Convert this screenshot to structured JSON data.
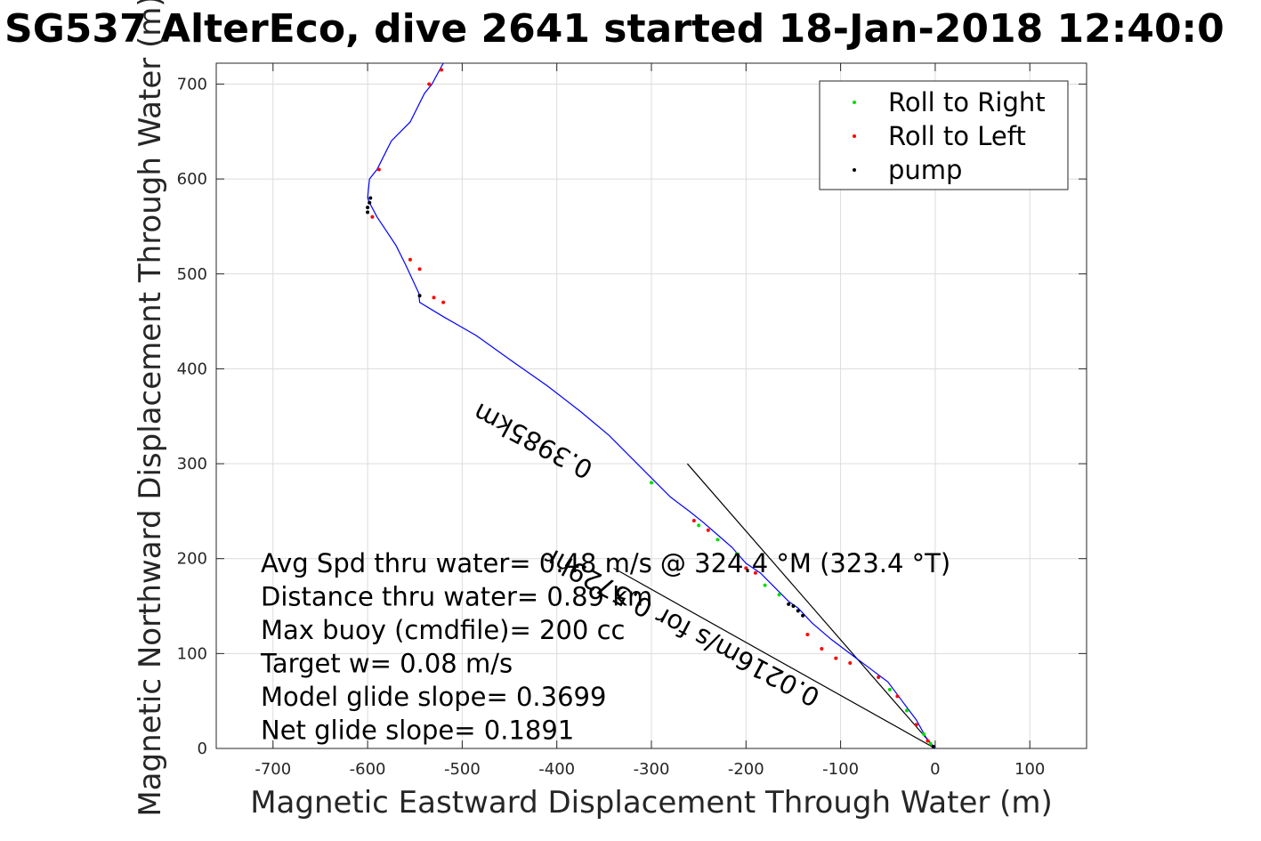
{
  "chart_data": {
    "type": "line",
    "title": "SG537 AlterEco, dive 2641 started 18-Jan-2018 12:40:0",
    "xlabel": "Magnetic Eastward Displacement Through Water (m)",
    "ylabel": "Magnetic Northward Displacement Through Water (m)",
    "xlim": [
      -760,
      160
    ],
    "ylim": [
      0,
      722
    ],
    "xticks": [
      -700,
      -600,
      -500,
      -400,
      -300,
      -200,
      -100,
      0,
      100
    ],
    "yticks": [
      0,
      100,
      200,
      300,
      400,
      500,
      600,
      700
    ],
    "grid": true,
    "legend_position": "top-right",
    "legend": [
      {
        "label": "Roll to Right",
        "color": "#00e000"
      },
      {
        "label": "Roll to Left",
        "color": "#ff0000"
      },
      {
        "label": "pump",
        "color": "#000000"
      }
    ],
    "track": {
      "name": "",
      "color": "#0000ff",
      "x": [
        0,
        -10,
        -20,
        -35,
        -50,
        -70,
        -90,
        -110,
        -130,
        -145,
        -155,
        -170,
        -185,
        -200,
        -215,
        -230,
        -245,
        -260,
        -280,
        -300,
        -320,
        -345,
        -375,
        -410,
        -450,
        -485,
        -520,
        -545,
        -546,
        -560,
        -570,
        -590,
        -598,
        -600,
        -598,
        -590,
        -585,
        -575,
        -555,
        -540,
        -532,
        -520
      ],
      "y": [
        0,
        12,
        30,
        50,
        70,
        85,
        100,
        115,
        132,
        148,
        155,
        170,
        185,
        195,
        212,
        225,
        238,
        250,
        265,
        285,
        305,
        330,
        355,
        382,
        410,
        435,
        455,
        470,
        480,
        510,
        530,
        560,
        575,
        580,
        600,
        610,
        620,
        640,
        660,
        690,
        700,
        722
      ]
    },
    "current_lines": [
      {
        "x": [
          0,
          -262
        ],
        "y": [
          0,
          300
        ]
      },
      {
        "x": [
          0,
          -340
        ],
        "y": [
          0,
          190
        ]
      }
    ],
    "current_labels": [
      {
        "text": "0.3985km",
        "x": -360,
        "y": 300,
        "angle_deg": 208
      },
      {
        "text": "0.0216m/s for 0.5729hr",
        "x": -120,
        "y": 60,
        "angle_deg": 208
      }
    ],
    "stats": [
      "Avg Spd thru water=  0.48 m/s @ 324.4 °M (323.4 °T)",
      "Distance thru water=  0.89 km",
      "Max buoy (cmdfile)= 200 cc",
      "Target w= 0.08 m/s",
      "Model glide slope= 0.3699",
      "Net glide slope= 0.1891"
    ],
    "roll_right_points": {
      "x": [
        -5,
        -12,
        -30,
        -48,
        -150,
        -165,
        -180,
        -210,
        -230,
        -250,
        -300
      ],
      "y": [
        5,
        15,
        40,
        62,
        150,
        162,
        172,
        205,
        220,
        235,
        280
      ]
    },
    "roll_left_points": {
      "x": [
        -8,
        -20,
        -40,
        -60,
        -90,
        -105,
        -120,
        -135,
        -190,
        -200,
        -240,
        -255,
        -520,
        -530,
        -545,
        -555,
        -588,
        -595,
        -522,
        -535
      ],
      "y": [
        8,
        25,
        55,
        75,
        90,
        95,
        105,
        120,
        185,
        190,
        230,
        240,
        470,
        475,
        505,
        515,
        610,
        560,
        715,
        700
      ]
    },
    "pump_points": {
      "x": [
        -2,
        -140,
        -145,
        -150,
        -155,
        -598,
        -600,
        -597,
        -545,
        -600
      ],
      "y": [
        2,
        140,
        145,
        150,
        152,
        575,
        570,
        580,
        477,
        565
      ]
    }
  }
}
